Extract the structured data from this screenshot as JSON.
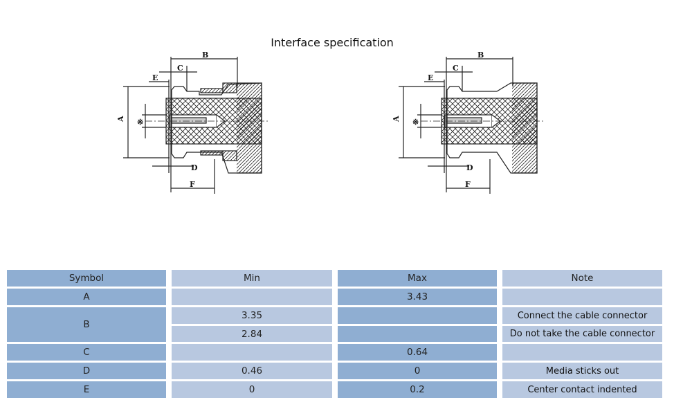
{
  "title": "Interface specification",
  "drawings": [
    {
      "labels": [
        "A",
        "B",
        "C",
        "D",
        "E",
        "F"
      ],
      "symbol": "※"
    },
    {
      "labels": [
        "A",
        "B",
        "C",
        "D",
        "E",
        "F"
      ],
      "symbol": "※"
    }
  ],
  "table": {
    "headers": [
      "Symbol",
      "Min",
      "Max",
      "Note"
    ],
    "rows": [
      {
        "symbol": "A",
        "min": "",
        "max": "3.43",
        "note": ""
      },
      {
        "symbol": "B",
        "min": "3.35",
        "max": "",
        "note": "Connect the cable connector"
      },
      {
        "symbol": "",
        "min": "2.84",
        "max": "",
        "note": "Do not take the cable connector"
      },
      {
        "symbol": "C",
        "min": "",
        "max": "0.64",
        "note": ""
      },
      {
        "symbol": "D",
        "min": "0.46",
        "max": "0",
        "note": "Media sticks out"
      },
      {
        "symbol": "E",
        "min": "0",
        "max": "0.2",
        "note": "Center contact indented"
      }
    ]
  },
  "colors": {
    "dark_cell": "#8faed2",
    "light_cell": "#b8c8e0"
  }
}
